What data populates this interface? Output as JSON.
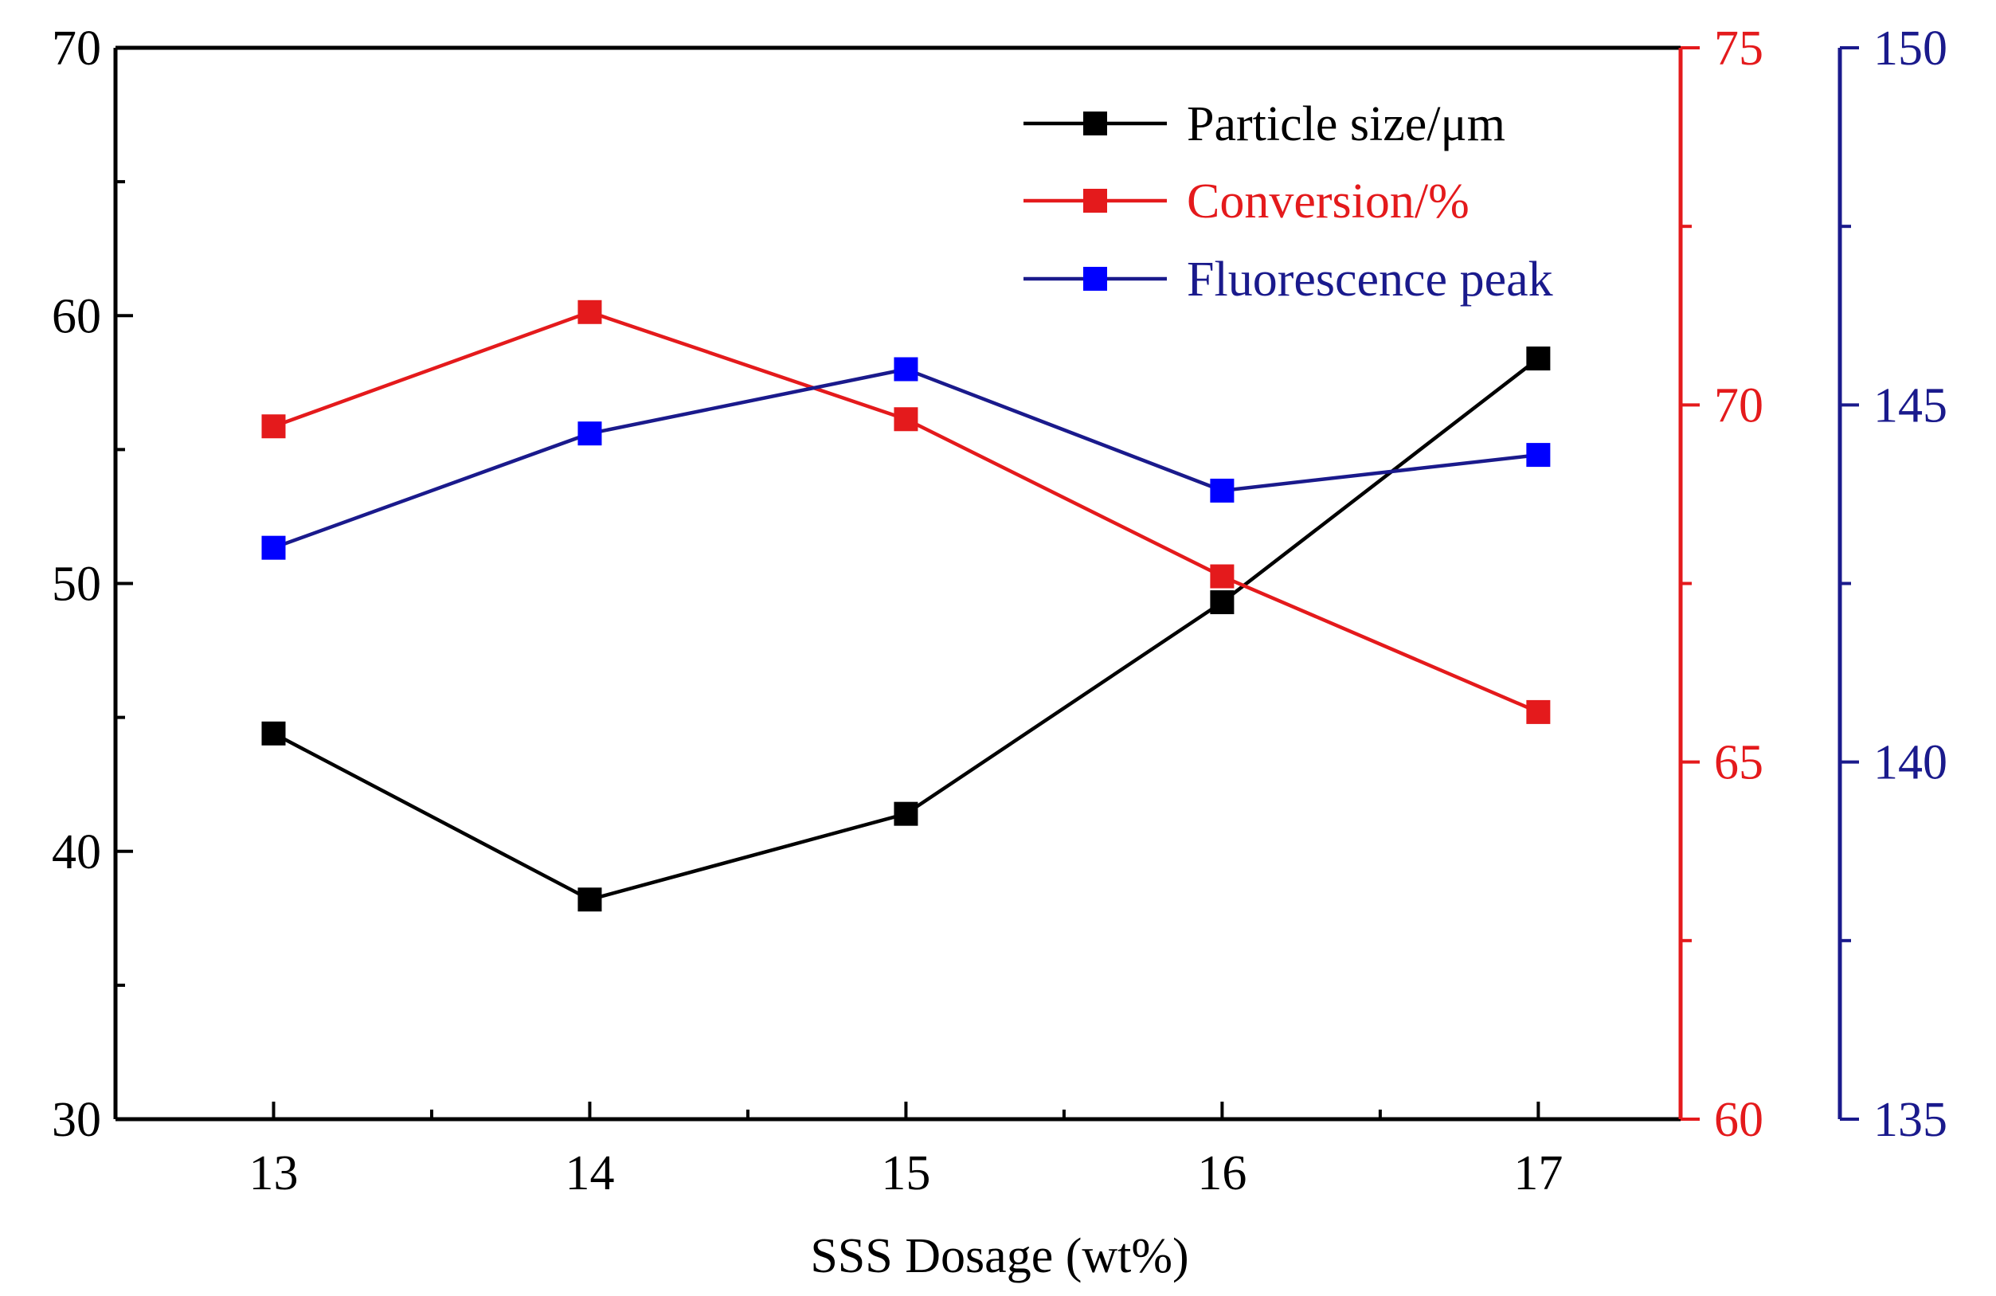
{
  "chart_data": {
    "type": "line",
    "title": "",
    "xlabel": "SSS Dosage (wt%)",
    "x": [
      13,
      14,
      15,
      16,
      17
    ],
    "xlim": [
      12.5,
      17.45
    ],
    "xticks": [
      "13",
      "14",
      "15",
      "16",
      "17"
    ],
    "axes": {
      "left": {
        "ylim": [
          30,
          70
        ],
        "ticks": [
          "30",
          "40",
          "50",
          "60",
          "70"
        ],
        "color": "#000000"
      },
      "right1": {
        "ylim": [
          60,
          75
        ],
        "ticks": [
          "60",
          "65",
          "70",
          "75"
        ],
        "color": "#e41a1c"
      },
      "right2": {
        "ylim": [
          135,
          150
        ],
        "ticks": [
          "135",
          "140",
          "145",
          "150"
        ],
        "color": "#1a1a8c"
      }
    },
    "series": [
      {
        "name": "Particle size/μm",
        "axis": "left",
        "color": "#000000",
        "values": [
          44.4,
          38.2,
          41.4,
          49.3,
          58.4
        ]
      },
      {
        "name": "Conversion/%",
        "axis": "right1",
        "color": "#e41a1c",
        "values": [
          69.7,
          71.3,
          69.8,
          67.6,
          65.7
        ]
      },
      {
        "name": "Fluorescence peak",
        "axis": "right2",
        "color": "#1a1a8c",
        "marker_color": "#0000ff",
        "values": [
          143.0,
          144.6,
          145.5,
          143.8,
          144.3
        ]
      }
    ],
    "legend": {
      "position": "top-right"
    },
    "grid": false
  }
}
